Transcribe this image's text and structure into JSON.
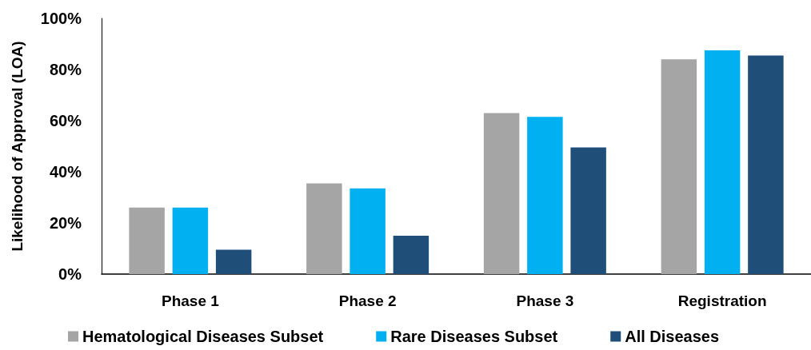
{
  "chart_data": {
    "type": "bar",
    "ylabel": "Likelihood of Approval (LOA)",
    "categories": [
      "Phase 1",
      "Phase 2",
      "Phase 3",
      "Registration"
    ],
    "series": [
      {
        "name": "Hematological Diseases Subset",
        "color": "#a5a5a5",
        "values": [
          26,
          35.5,
          63,
          84
        ]
      },
      {
        "name": "Rare Diseases Subset",
        "color": "#00b0f0",
        "values": [
          26,
          33.5,
          61.5,
          87.5
        ]
      },
      {
        "name": "All Diseases",
        "color": "#1f4e79",
        "values": [
          9.5,
          15,
          49.5,
          85.5
        ]
      }
    ],
    "ylim": [
      0,
      100
    ],
    "yticks": [
      {
        "value": 0,
        "label": "0%"
      },
      {
        "value": 20,
        "label": "20%"
      },
      {
        "value": 40,
        "label": "40%"
      },
      {
        "value": 60,
        "label": "60%"
      },
      {
        "value": 80,
        "label": "80%"
      },
      {
        "value": 100,
        "label": "100%"
      }
    ],
    "grid": false,
    "legend": "bottom"
  }
}
